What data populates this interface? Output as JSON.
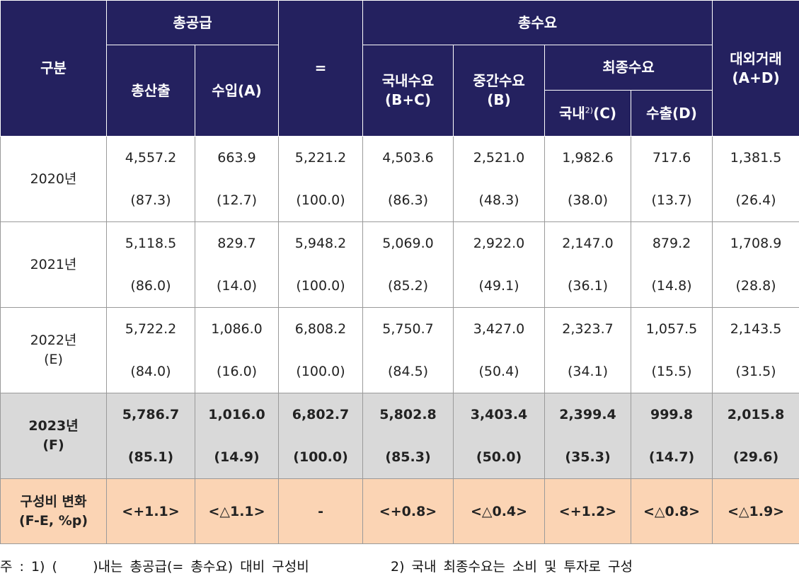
{
  "header": {
    "gubun": "구분",
    "total_supply": "총공급",
    "equals": "=",
    "total_demand": "총수요",
    "external": [
      "대외거래",
      "(A+D)"
    ],
    "output": "총산출",
    "imports": "수입(A)",
    "domestic_demand": [
      "국내수요",
      "(B+C)"
    ],
    "intermediate": [
      "중간수요",
      "(B)"
    ],
    "final_demand": "최종수요",
    "domestic_final": [
      "국내",
      "2)",
      "(C)"
    ],
    "exports": "수출(D)"
  },
  "rows": [
    {
      "label": [
        "2020년"
      ],
      "values": [
        [
          "4,557.2",
          "(87.3)"
        ],
        [
          "663.9",
          "(12.7)"
        ],
        [
          "5,221.2",
          "(100.0)"
        ],
        [
          "4,503.6",
          "(86.3)"
        ],
        [
          "2,521.0",
          "(48.3)"
        ],
        [
          "1,982.6",
          "(38.0)"
        ],
        [
          "717.6",
          "(13.7)"
        ],
        [
          "1,381.5",
          "(26.4)"
        ]
      ]
    },
    {
      "label": [
        "2021년"
      ],
      "values": [
        [
          "5,118.5",
          "(86.0)"
        ],
        [
          "829.7",
          "(14.0)"
        ],
        [
          "5,948.2",
          "(100.0)"
        ],
        [
          "5,069.0",
          "(85.2)"
        ],
        [
          "2,922.0",
          "(49.1)"
        ],
        [
          "2,147.0",
          "(36.1)"
        ],
        [
          "879.2",
          "(14.8)"
        ],
        [
          "1,708.9",
          "(28.8)"
        ]
      ]
    },
    {
      "label": [
        "2022년",
        "(E)"
      ],
      "values": [
        [
          "5,722.2",
          "(84.0)"
        ],
        [
          "1,086.0",
          "(16.0)"
        ],
        [
          "6,808.2",
          "(100.0)"
        ],
        [
          "5,750.7",
          "(84.5)"
        ],
        [
          "3,427.0",
          "(50.4)"
        ],
        [
          "2,323.7",
          "(34.1)"
        ],
        [
          "1,057.5",
          "(15.5)"
        ],
        [
          "2,143.5",
          "(31.5)"
        ]
      ]
    },
    {
      "label": [
        "2023년",
        "(F)"
      ],
      "values": [
        [
          "5,786.7",
          "(85.1)"
        ],
        [
          "1,016.0",
          "(14.9)"
        ],
        [
          "6,802.7",
          "(100.0)"
        ],
        [
          "5,802.8",
          "(85.3)"
        ],
        [
          "3,403.4",
          "(50.0)"
        ],
        [
          "2,399.4",
          "(35.3)"
        ],
        [
          "999.8",
          "(14.7)"
        ],
        [
          "2,015.8",
          "(29.6)"
        ]
      ]
    }
  ],
  "change_row": {
    "label": [
      "구성비 변화",
      "(F-E, %p)"
    ],
    "values": [
      "<+1.1>",
      "<△1.1>",
      "-",
      "<+0.8>",
      "<△0.4>",
      "<+1.2>",
      "<△0.8>",
      "<△1.9>"
    ]
  },
  "footnotes": [
    "주 : 1) (     )내는 총공급(= 총수요) 대비 구성비",
    "2) 국내 최종수요는 소비 및 투자로 구성"
  ]
}
